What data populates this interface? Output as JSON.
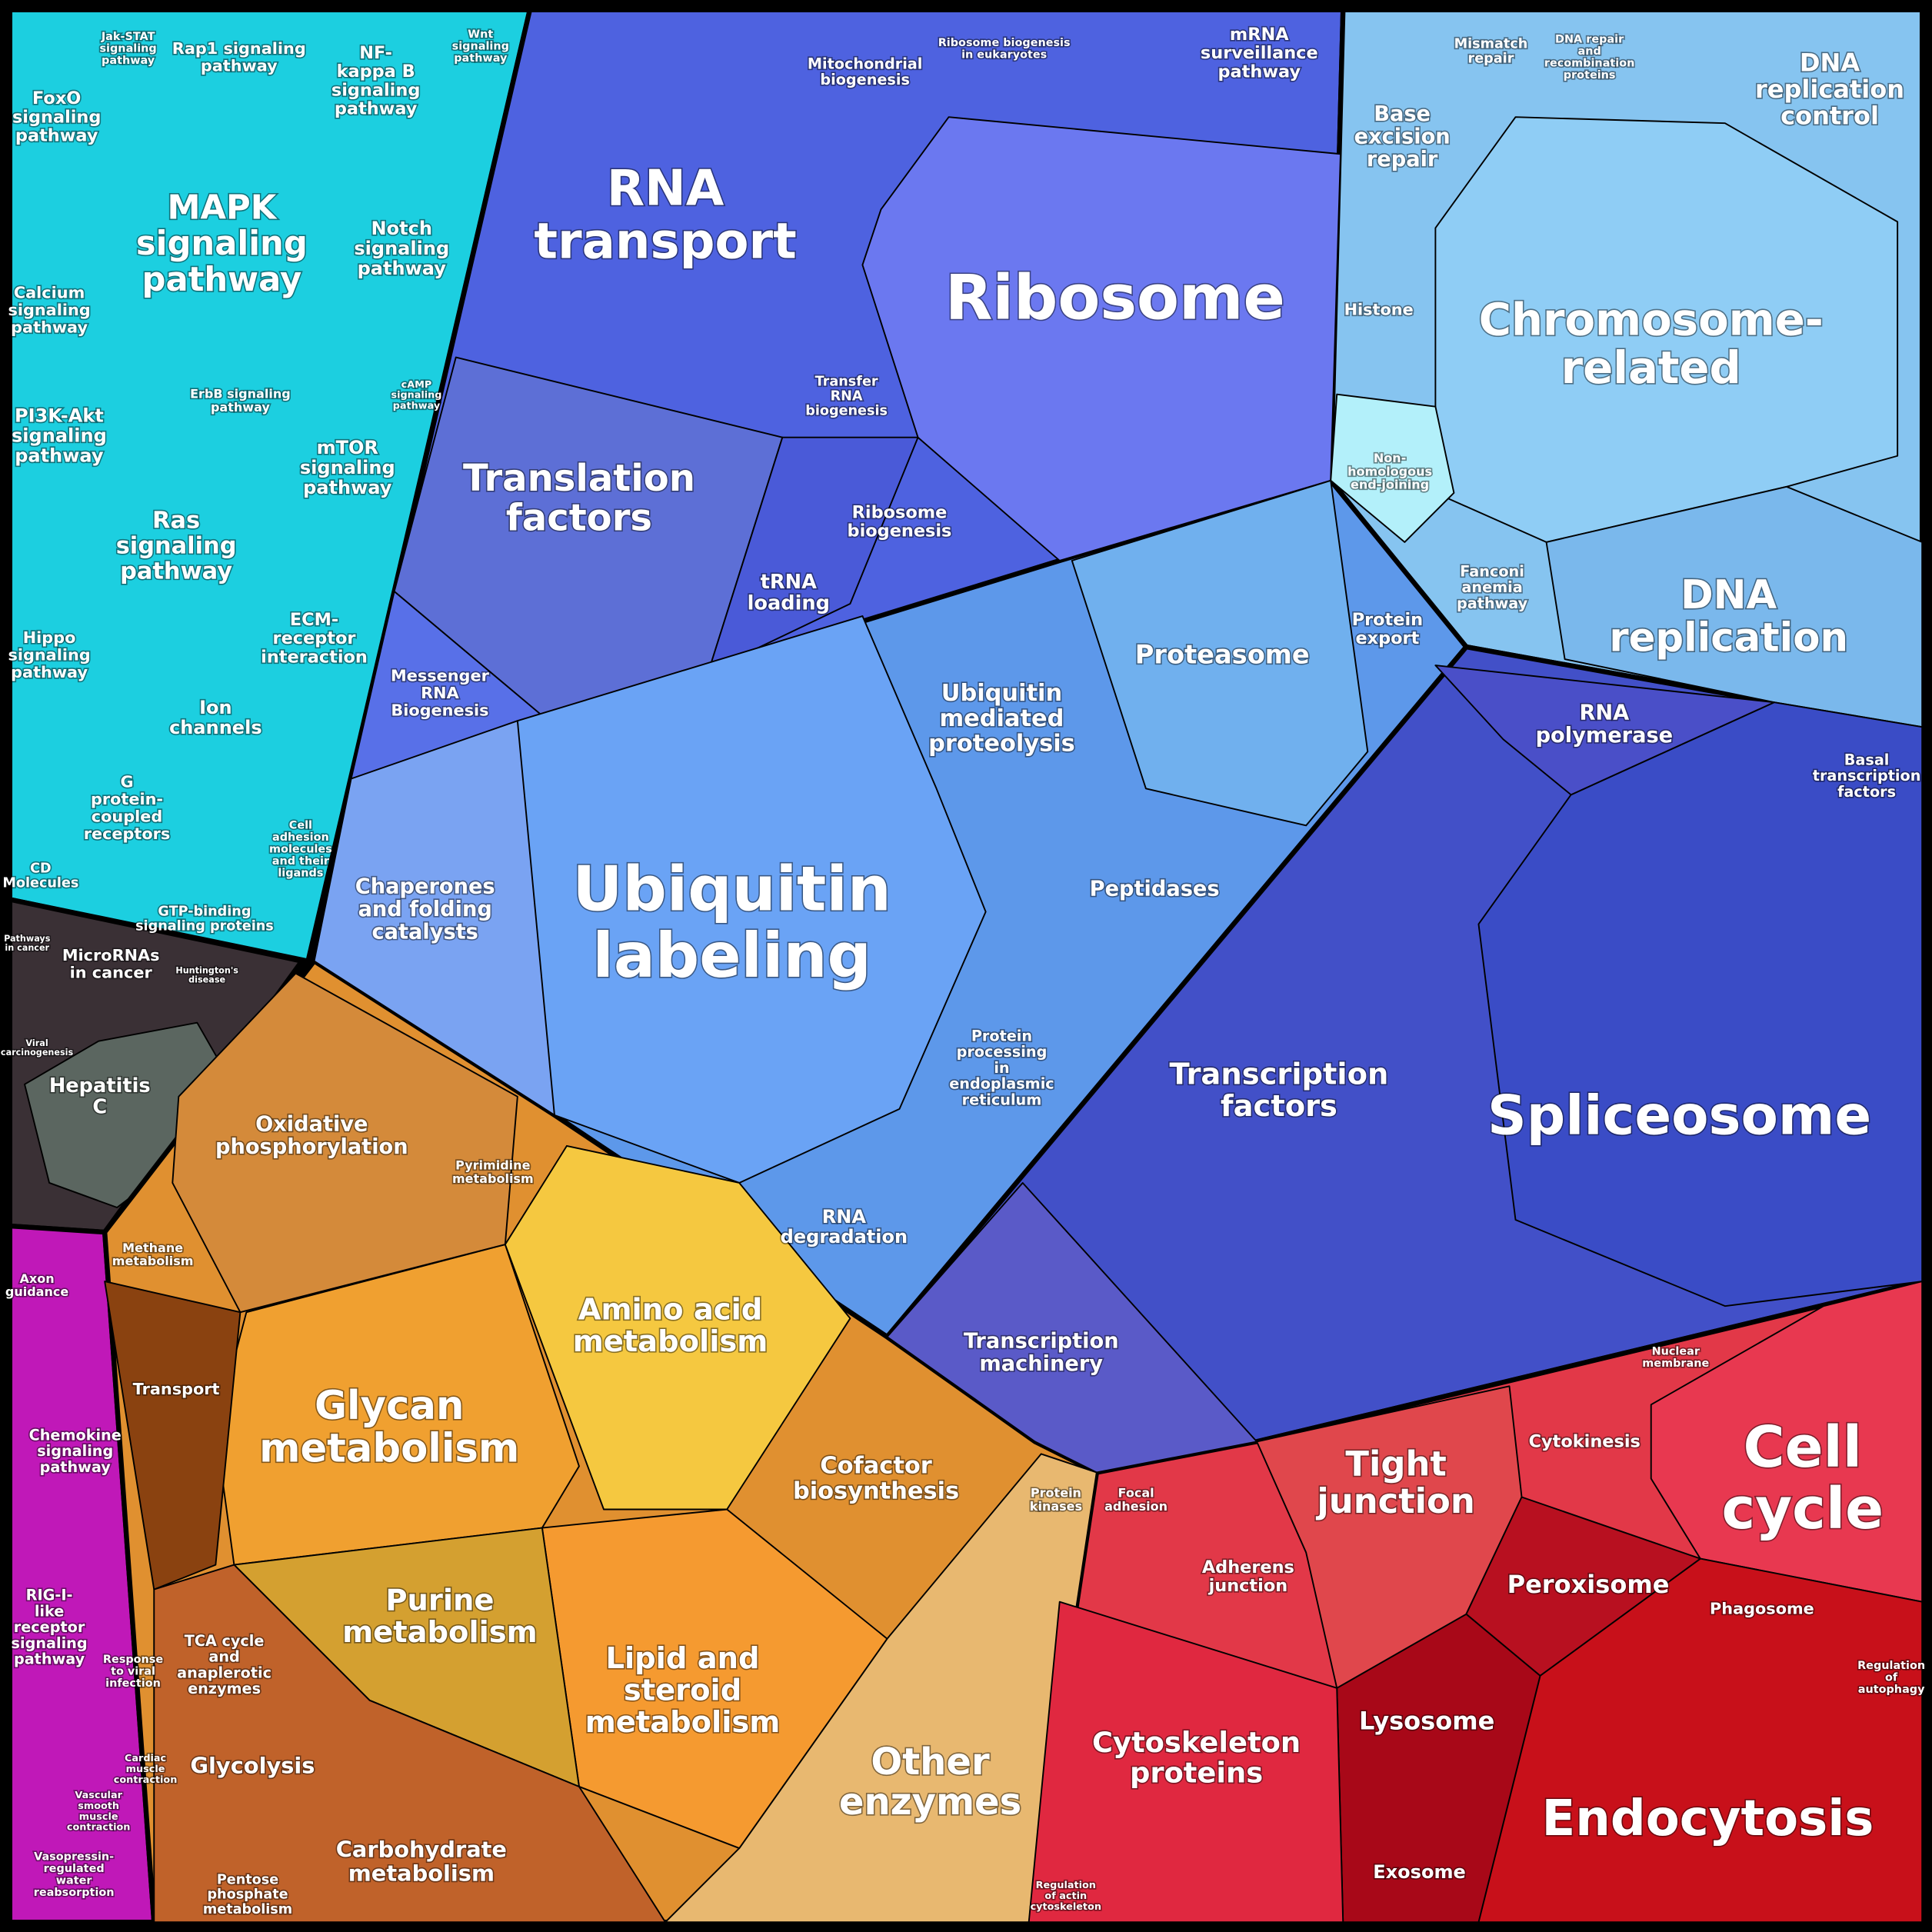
{
  "labels": [
    {
      "lines": [
        "Jak-STAT",
        "signaling",
        "pathway"
      ]
    },
    {
      "lines": [
        "Rap1 signaling",
        "pathway"
      ]
    },
    {
      "lines": [
        "NF-",
        "kappa B",
        "signaling",
        "pathway"
      ]
    },
    {
      "lines": [
        "Wnt",
        "signaling",
        "pathway"
      ]
    },
    {
      "lines": [
        "FoxO",
        "signaling",
        "pathway"
      ]
    },
    {
      "lines": [
        "MAPK",
        "signaling",
        "pathway"
      ]
    },
    {
      "lines": [
        "Notch",
        "signaling",
        "pathway"
      ]
    },
    {
      "lines": [
        "Calcium",
        "signaling",
        "pathway"
      ]
    },
    {
      "lines": [
        "ErbB signaling",
        "pathway"
      ]
    },
    {
      "lines": [
        "cAMP",
        "signaling",
        "pathway"
      ]
    },
    {
      "lines": [
        "PI3K-Akt",
        "signaling",
        "pathway"
      ]
    },
    {
      "lines": [
        "mTOR",
        "signaling",
        "pathway"
      ]
    },
    {
      "lines": [
        "Ras",
        "signaling",
        "pathway"
      ]
    },
    {
      "lines": [
        "Hippo",
        "signaling",
        "pathway"
      ]
    },
    {
      "lines": [
        "ECM-",
        "receptor",
        "interaction"
      ]
    },
    {
      "lines": [
        "Ion",
        "channels"
      ]
    },
    {
      "lines": [
        "G",
        "protein-",
        "coupled",
        "receptors"
      ]
    },
    {
      "lines": [
        "Cell",
        "adhesion",
        "molecules",
        "and their",
        "ligands"
      ]
    },
    {
      "lines": [
        "CD",
        "Molecules"
      ]
    },
    {
      "lines": [
        "GTP-binding",
        "signaling proteins"
      ]
    },
    {
      "lines": [
        "Pathways",
        "in cancer"
      ]
    },
    {
      "lines": [
        "MicroRNAs",
        "in cancer"
      ]
    },
    {
      "lines": [
        "Huntington's",
        "disease"
      ]
    },
    {
      "lines": [
        "Hepatitis",
        "C"
      ]
    },
    {
      "lines": [
        "Viral",
        "carcinogenesis"
      ]
    },
    {
      "lines": [
        "Axon",
        "guidance"
      ]
    },
    {
      "lines": [
        "Chemokine",
        "signaling",
        "pathway"
      ]
    },
    {
      "lines": [
        "RIG-I-",
        "like",
        "receptor",
        "signaling",
        "pathway"
      ]
    },
    {
      "lines": [
        "Response",
        "to viral",
        "infection"
      ]
    },
    {
      "lines": [
        "Cardiac",
        "muscle",
        "contraction"
      ]
    },
    {
      "lines": [
        "Vascular",
        "smooth",
        "muscle",
        "contraction"
      ]
    },
    {
      "lines": [
        "Vasopressin-",
        "regulated",
        "water",
        "reabsorption"
      ]
    },
    {
      "lines": [
        "Mitochondrial",
        "biogenesis"
      ]
    },
    {
      "lines": [
        "Ribosome biogenesis",
        "in eukaryotes"
      ]
    },
    {
      "lines": [
        "mRNA",
        "surveillance",
        "pathway"
      ]
    },
    {
      "lines": [
        "RNA",
        "transport"
      ]
    },
    {
      "lines": [
        "Ribosome"
      ]
    },
    {
      "lines": [
        "Transfer",
        "RNA",
        "biogenesis"
      ]
    },
    {
      "lines": [
        "Translation",
        "factors"
      ]
    },
    {
      "lines": [
        "Ribosome",
        "biogenesis"
      ]
    },
    {
      "lines": [
        "tRNA",
        "loading"
      ]
    },
    {
      "lines": [
        "Messenger",
        "RNA",
        "Biogenesis"
      ]
    },
    {
      "lines": [
        "Mismatch",
        "repair"
      ]
    },
    {
      "lines": [
        "DNA repair",
        "and",
        "recombination",
        "proteins"
      ]
    },
    {
      "lines": [
        "DNA",
        "replication",
        "control"
      ]
    },
    {
      "lines": [
        "Base",
        "excision",
        "repair"
      ]
    },
    {
      "lines": [
        "Histone"
      ]
    },
    {
      "lines": [
        "Chromosome-",
        "related"
      ]
    },
    {
      "lines": [
        "Non-",
        "homologous",
        "end-joining"
      ]
    },
    {
      "lines": [
        "Fanconi",
        "anemia",
        "pathway"
      ]
    },
    {
      "lines": [
        "DNA",
        "replication"
      ]
    },
    {
      "lines": [
        "Ubiquitin",
        "mediated",
        "proteolysis"
      ]
    },
    {
      "lines": [
        "Proteasome"
      ]
    },
    {
      "lines": [
        "Protein",
        "export"
      ]
    },
    {
      "lines": [
        "Chaperones",
        "and folding",
        "catalysts"
      ]
    },
    {
      "lines": [
        "Ubiquitin",
        "labeling"
      ]
    },
    {
      "lines": [
        "Peptidases"
      ]
    },
    {
      "lines": [
        "Protein",
        "processing",
        "in",
        "endoplasmic",
        "reticulum"
      ]
    },
    {
      "lines": [
        "RNA",
        "degradation"
      ]
    },
    {
      "lines": [
        "RNA",
        "polymerase"
      ]
    },
    {
      "lines": [
        "Basal",
        "transcription",
        "factors"
      ]
    },
    {
      "lines": [
        "Transcription",
        "factors"
      ]
    },
    {
      "lines": [
        "Spliceosome"
      ]
    },
    {
      "lines": [
        "Transcription",
        "machinery"
      ]
    },
    {
      "lines": [
        "Oxidative",
        "phosphorylation"
      ]
    },
    {
      "lines": [
        "Pyrimidine",
        "metabolism"
      ]
    },
    {
      "lines": [
        "Methane",
        "metabolism"
      ]
    },
    {
      "lines": [
        "Amino acid",
        "metabolism"
      ]
    },
    {
      "lines": [
        "Transport"
      ]
    },
    {
      "lines": [
        "Glycan",
        "metabolism"
      ]
    },
    {
      "lines": [
        "Cofactor",
        "biosynthesis"
      ]
    },
    {
      "lines": [
        "Protein",
        "kinases"
      ]
    },
    {
      "lines": [
        "Purine",
        "metabolism"
      ]
    },
    {
      "lines": [
        "TCA cycle",
        "and",
        "anaplerotic",
        "enzymes"
      ]
    },
    {
      "lines": [
        "Lipid and",
        "steroid",
        "metabolism"
      ]
    },
    {
      "lines": [
        "Glycolysis"
      ]
    },
    {
      "lines": [
        "Other",
        "enzymes"
      ]
    },
    {
      "lines": [
        "Carbohydrate",
        "metabolism"
      ]
    },
    {
      "lines": [
        "Pentose",
        "phosphate",
        "metabolism"
      ]
    },
    {
      "lines": [
        "Nuclear",
        "membrane"
      ]
    },
    {
      "lines": [
        "Cytokinesis"
      ]
    },
    {
      "lines": [
        "Cell",
        "cycle"
      ]
    },
    {
      "lines": [
        "Focal",
        "adhesion"
      ]
    },
    {
      "lines": [
        "Tight",
        "junction"
      ]
    },
    {
      "lines": [
        "Adherens",
        "junction"
      ]
    },
    {
      "lines": [
        "Peroxisome"
      ]
    },
    {
      "lines": [
        "Phagosome"
      ]
    },
    {
      "lines": [
        "Regulation",
        "of",
        "autophagy"
      ]
    },
    {
      "lines": [
        "Lysosome"
      ]
    },
    {
      "lines": [
        "Cytoskeleton",
        "proteins"
      ]
    },
    {
      "lines": [
        "Endocytosis"
      ]
    },
    {
      "lines": [
        "Exosome"
      ]
    },
    {
      "lines": [
        "Regulation",
        "of actin",
        "cytoskeleton"
      ]
    }
  ]
}
